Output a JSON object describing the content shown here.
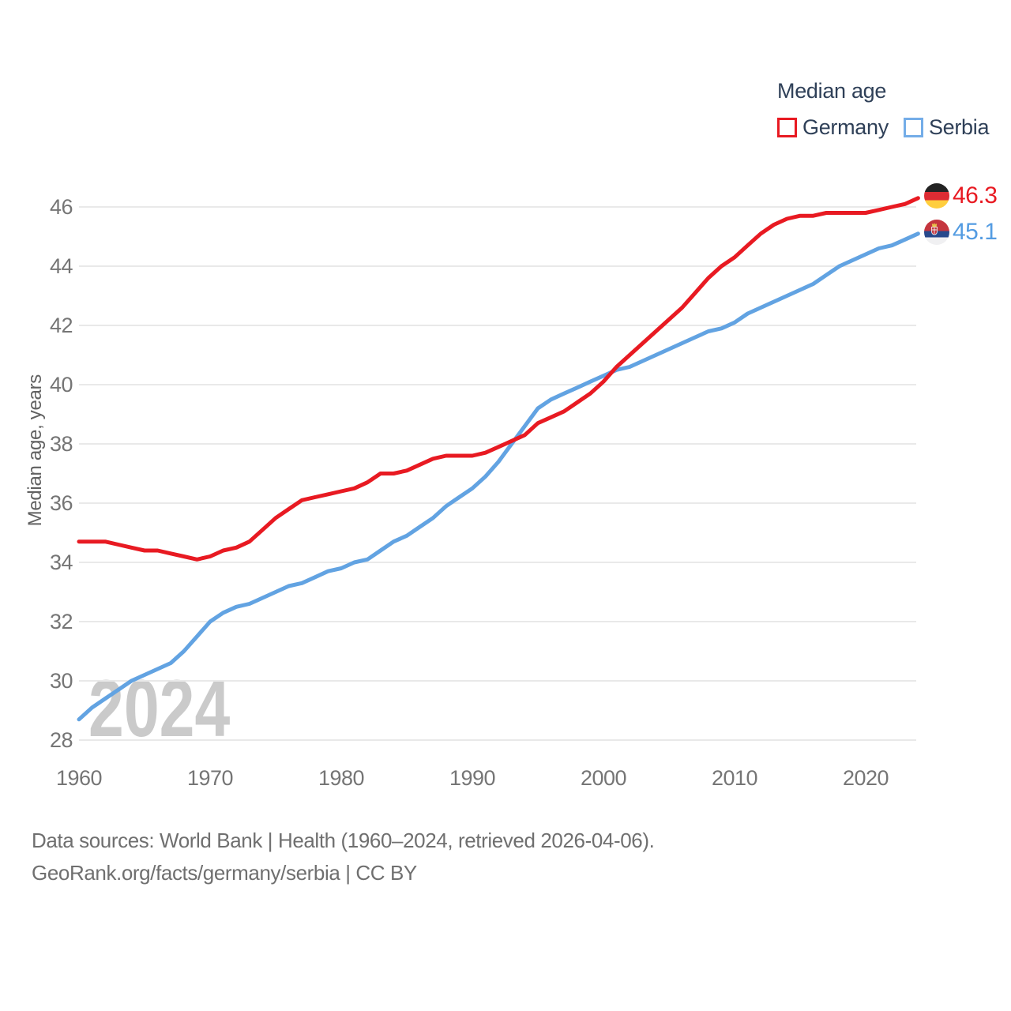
{
  "legend": {
    "title": "Median age",
    "items": [
      {
        "label": "Germany",
        "color": "#e81a22"
      },
      {
        "label": "Serbia",
        "color": "#74ade8"
      }
    ]
  },
  "end_labels": {
    "germany": {
      "value": "46.3",
      "color": "#e81a22",
      "flag": "germany-flag"
    },
    "serbia": {
      "value": "45.1",
      "color": "#549ce2",
      "flag": "serbia-flag"
    }
  },
  "watermark": "2024",
  "source": {
    "line1": "Data sources: World Bank | Health (1960–2024, retrieved 2026-04-06).",
    "line2": "GeoRank.org/facts/germany/serbia | CC BY"
  },
  "chart_data": {
    "type": "line",
    "title": "Median age",
    "xlabel": "",
    "ylabel": "Median age, years",
    "x_ticks": [
      1960,
      1970,
      1980,
      1990,
      2000,
      2010,
      2020
    ],
    "y_ticks": [
      28,
      30,
      32,
      34,
      36,
      38,
      40,
      42,
      44,
      46
    ],
    "xlim": [
      1960,
      2024
    ],
    "ylim": [
      28,
      46
    ],
    "grid": "horizontal-only",
    "legend_position": "top-right",
    "years": [
      1960,
      1961,
      1962,
      1963,
      1964,
      1965,
      1966,
      1967,
      1968,
      1969,
      1970,
      1971,
      1972,
      1973,
      1974,
      1975,
      1976,
      1977,
      1978,
      1979,
      1980,
      1981,
      1982,
      1983,
      1984,
      1985,
      1986,
      1987,
      1988,
      1989,
      1990,
      1991,
      1992,
      1993,
      1994,
      1995,
      1996,
      1997,
      1998,
      1999,
      2000,
      2001,
      2002,
      2003,
      2004,
      2005,
      2006,
      2007,
      2008,
      2009,
      2010,
      2011,
      2012,
      2013,
      2014,
      2015,
      2016,
      2017,
      2018,
      2019,
      2020,
      2021,
      2022,
      2023,
      2024
    ],
    "series": [
      {
        "name": "Germany",
        "color": "#e81a22",
        "values": [
          34.7,
          34.7,
          34.7,
          34.6,
          34.5,
          34.4,
          34.4,
          34.3,
          34.2,
          34.1,
          34.2,
          34.4,
          34.5,
          34.7,
          35.1,
          35.5,
          35.8,
          36.1,
          36.2,
          36.3,
          36.4,
          36.5,
          36.7,
          37.0,
          37.0,
          37.1,
          37.3,
          37.5,
          37.6,
          37.6,
          37.6,
          37.7,
          37.9,
          38.1,
          38.3,
          38.7,
          38.9,
          39.1,
          39.4,
          39.7,
          40.1,
          40.6,
          41.0,
          41.4,
          41.8,
          42.2,
          42.6,
          43.1,
          43.6,
          44.0,
          44.3,
          44.7,
          45.1,
          45.4,
          45.6,
          45.7,
          45.7,
          45.8,
          45.8,
          45.8,
          45.8,
          45.9,
          46.0,
          46.1,
          46.3
        ]
      },
      {
        "name": "Serbia",
        "color": "#62a3e2",
        "values": [
          28.7,
          29.1,
          29.4,
          29.7,
          30.0,
          30.2,
          30.4,
          30.6,
          31.0,
          31.5,
          32.0,
          32.3,
          32.5,
          32.6,
          32.8,
          33.0,
          33.2,
          33.3,
          33.5,
          33.7,
          33.8,
          34.0,
          34.1,
          34.4,
          34.7,
          34.9,
          35.2,
          35.5,
          35.9,
          36.2,
          36.5,
          36.9,
          37.4,
          38.0,
          38.6,
          39.2,
          39.5,
          39.7,
          39.9,
          40.1,
          40.3,
          40.5,
          40.6,
          40.8,
          41.0,
          41.2,
          41.4,
          41.6,
          41.8,
          41.9,
          42.1,
          42.4,
          42.6,
          42.8,
          43.0,
          43.2,
          43.4,
          43.7,
          44.0,
          44.2,
          44.4,
          44.6,
          44.7,
          44.9,
          45.1
        ]
      }
    ]
  }
}
